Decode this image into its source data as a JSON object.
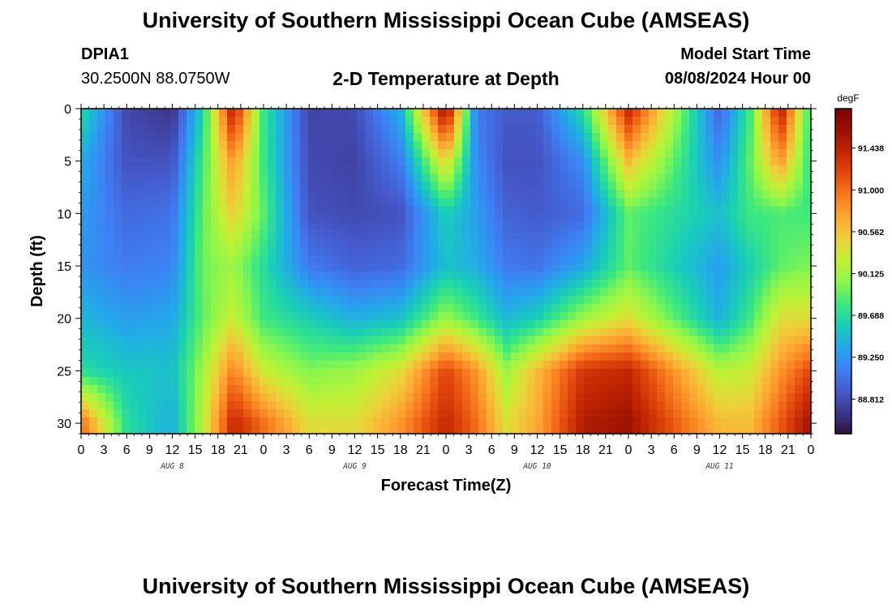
{
  "header": {
    "title": "University of Southern Mississippi Ocean Cube (AMSEAS)",
    "station_id": "DPIA1",
    "coordinates": "30.2500N  88.0750W",
    "subtitle": "2-D Temperature at Depth",
    "model_start_label": "Model Start Time",
    "model_start_value": "08/08/2024 Hour 00",
    "footer_title": "University of Southern Mississippi Ocean Cube (AMSEAS)"
  },
  "chart_data": {
    "type": "heatmap",
    "title": "2-D Temperature at Depth",
    "xlabel": "Forecast Time(Z)",
    "ylabel": "Depth (ft)",
    "xlim": [
      0,
      96
    ],
    "ylim": [
      0,
      31
    ],
    "x_tick_labels": [
      "0",
      "3",
      "6",
      "9",
      "12",
      "15",
      "18",
      "21",
      "0",
      "3",
      "6",
      "9",
      "12",
      "15",
      "18",
      "21",
      "0",
      "3",
      "6",
      "9",
      "12",
      "15",
      "18",
      "21",
      "0",
      "3",
      "6",
      "9",
      "12",
      "15",
      "18",
      "21",
      "0"
    ],
    "y_ticks": [
      0,
      5,
      10,
      15,
      20,
      25,
      30
    ],
    "day_labels": [
      {
        "text": "AUG 8",
        "hour": 12
      },
      {
        "text": "AUG 9",
        "hour": 36
      },
      {
        "text": "AUG 10",
        "hour": 60
      },
      {
        "text": "AUG 11",
        "hour": 84
      }
    ],
    "colorbar": {
      "unit": "degF",
      "range": [
        88.45,
        91.85
      ],
      "tick_labels": [
        "91.438",
        "91.000",
        "90.562",
        "90.125",
        "89.688",
        "89.250",
        "88.812"
      ],
      "tick_values": [
        91.438,
        91.0,
        90.562,
        90.125,
        89.688,
        89.25,
        88.812
      ],
      "colors": [
        "#30123b",
        "#3e378f",
        "#455bcd",
        "#3e80f5",
        "#23a8ea",
        "#19cdb9",
        "#3de87e",
        "#8ef64b",
        "#c3f034",
        "#eecf3a",
        "#fea632",
        "#f8791e",
        "#e3490d",
        "#c42703",
        "#9a1001",
        "#7a0403"
      ]
    },
    "depths_ft": [
      0,
      5,
      10,
      15,
      20,
      25,
      30
    ],
    "hours": [
      0,
      6,
      12,
      16,
      20,
      24,
      30,
      36,
      42,
      48,
      52,
      56,
      60,
      66,
      72,
      84,
      88,
      92,
      96
    ],
    "values": [
      [
        89.7,
        88.78,
        88.65,
        89.6,
        91.5,
        89.8,
        88.75,
        88.8,
        89.4,
        91.7,
        89.1,
        88.9,
        88.9,
        89.7,
        91.4,
        88.95,
        89.8,
        91.5,
        89.7
      ],
      [
        89.4,
        88.85,
        88.85,
        89.8,
        90.8,
        89.8,
        88.8,
        88.75,
        89.1,
        90.5,
        89.2,
        88.85,
        88.85,
        89.2,
        90.6,
        89.2,
        89.9,
        90.8,
        89.7
      ],
      [
        89.3,
        89.0,
        89.05,
        89.9,
        90.5,
        89.9,
        88.85,
        88.8,
        88.85,
        89.6,
        89.3,
        88.95,
        88.9,
        89.0,
        89.9,
        89.5,
        89.8,
        89.85,
        89.8
      ],
      [
        89.25,
        89.1,
        89.15,
        89.95,
        90.1,
        89.7,
        89.1,
        88.95,
        89.0,
        89.5,
        89.4,
        89.1,
        89.05,
        89.35,
        89.9,
        89.3,
        89.6,
        89.9,
        90.0
      ],
      [
        89.45,
        89.3,
        89.35,
        89.9,
        90.3,
        89.8,
        89.6,
        89.4,
        89.5,
        90.1,
        89.8,
        89.45,
        89.6,
        90.1,
        90.4,
        89.4,
        89.8,
        90.4,
        90.4
      ],
      [
        89.7,
        89.55,
        89.5,
        90.1,
        90.9,
        90.3,
        90.0,
        90.1,
        90.4,
        91.2,
        90.8,
        90.1,
        90.6,
        91.3,
        91.4,
        90.2,
        90.3,
        90.8,
        91.2
      ],
      [
        91.0,
        89.7,
        89.4,
        90.2,
        91.4,
        91.0,
        90.4,
        90.4,
        90.8,
        91.4,
        91.0,
        90.4,
        90.7,
        91.5,
        91.6,
        90.6,
        90.6,
        91.1,
        91.6
      ]
    ]
  }
}
